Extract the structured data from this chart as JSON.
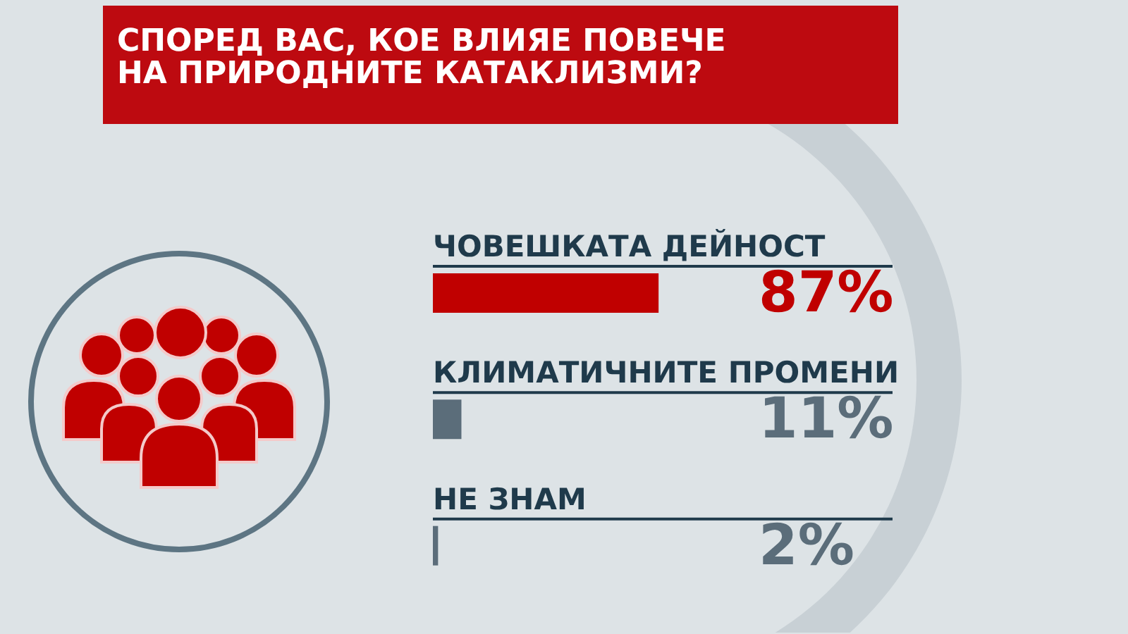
{
  "chart_data": {
    "type": "bar",
    "orientation": "horizontal",
    "title": "СПОРЕД ВАС, КОЕ ВЛИЯЕ ПОВЕЧЕ НА ПРИРОДНИТЕ КАТАКЛИЗМИ?",
    "categories": [
      "ЧОВЕШКАТА ДЕЙНОСТ",
      "КЛИМАТИЧНИТЕ ПРОМЕНИ",
      "НЕ ЗНАМ"
    ],
    "values": [
      87,
      11,
      2
    ],
    "colors": [
      "#c00000",
      "#5b6d7a",
      "#5b6d7a"
    ],
    "value_labels": [
      "87%",
      "11%",
      "2%"
    ]
  }
}
